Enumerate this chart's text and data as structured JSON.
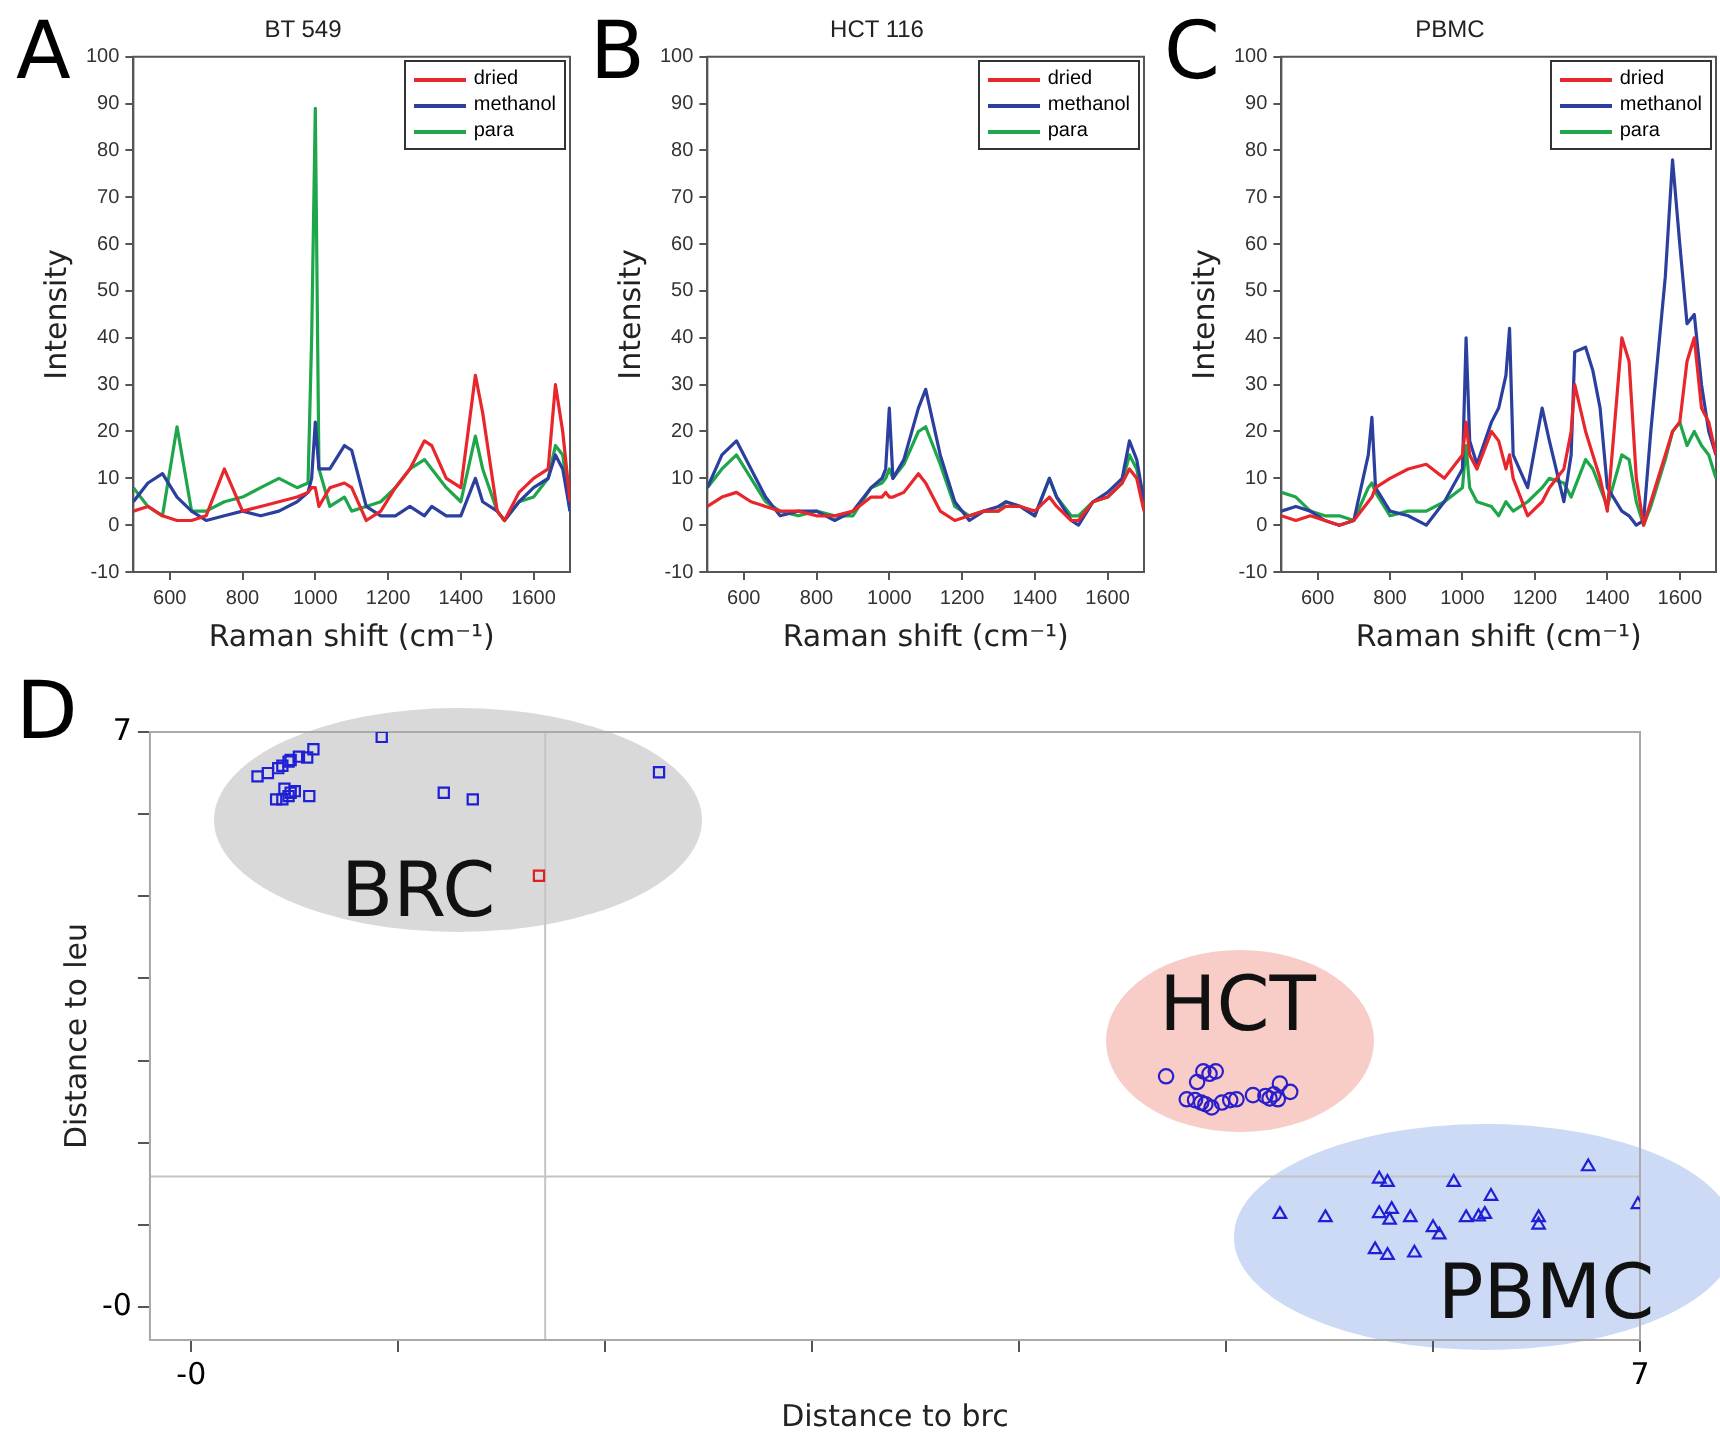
{
  "chart_data": [
    {
      "type": "line",
      "title": "BT 549",
      "xlabel": "Raman shift (cm⁻¹)",
      "ylabel": "Intensity",
      "annotations": [
        "A"
      ],
      "legend": "top right",
      "xlim": [
        500,
        1700
      ],
      "xticks": [
        600,
        800,
        1000,
        1200,
        1400,
        1600
      ],
      "ylim": [
        -10,
        100
      ],
      "yticks": [
        -10,
        0,
        10,
        20,
        30,
        40,
        50,
        60,
        70,
        80,
        90,
        100
      ],
      "x": [
        500,
        540,
        580,
        620,
        660,
        700,
        750,
        800,
        850,
        900,
        950,
        980,
        990,
        1000,
        1010,
        1040,
        1080,
        1100,
        1140,
        1180,
        1220,
        1260,
        1300,
        1320,
        1360,
        1400,
        1440,
        1460,
        1500,
        1520,
        1560,
        1600,
        1640,
        1660,
        1680,
        1700
      ],
      "series": [
        {
          "name": "dried",
          "color": "#e8262b",
          "values": [
            3,
            4,
            2,
            1,
            1,
            2,
            12,
            3,
            4,
            5,
            6,
            7,
            8,
            8,
            4,
            8,
            9,
            8,
            1,
            3,
            8,
            12,
            18,
            17,
            10,
            8,
            32,
            24,
            3,
            1,
            7,
            10,
            12,
            30,
            20,
            5
          ]
        },
        {
          "name": "methanol",
          "color": "#2b3f9e",
          "values": [
            5,
            9,
            11,
            6,
            3,
            1,
            2,
            3,
            2,
            3,
            5,
            7,
            10,
            22,
            12,
            12,
            17,
            16,
            4,
            2,
            2,
            4,
            2,
            4,
            2,
            2,
            10,
            5,
            3,
            1,
            5,
            8,
            10,
            15,
            12,
            3
          ]
        },
        {
          "name": "para",
          "color": "#1ea64a",
          "values": [
            8,
            4,
            2,
            21,
            3,
            3,
            5,
            6,
            8,
            10,
            8,
            9,
            40,
            89,
            12,
            4,
            6,
            3,
            4,
            5,
            8,
            12,
            14,
            12,
            8,
            5,
            19,
            12,
            3,
            1,
            5,
            6,
            10,
            17,
            15,
            3
          ]
        }
      ]
    },
    {
      "type": "line",
      "title": "HCT 116",
      "xlabel": "Raman shift (cm⁻¹)",
      "ylabel": "Intensity",
      "annotations": [
        "B"
      ],
      "legend": "top right",
      "xlim": [
        500,
        1700
      ],
      "xticks": [
        600,
        800,
        1000,
        1200,
        1400,
        1600
      ],
      "ylim": [
        -10,
        100
      ],
      "yticks": [
        -10,
        0,
        10,
        20,
        30,
        40,
        50,
        60,
        70,
        80,
        90,
        100
      ],
      "x": [
        500,
        540,
        580,
        620,
        660,
        700,
        750,
        800,
        850,
        900,
        950,
        980,
        990,
        1000,
        1010,
        1040,
        1080,
        1100,
        1140,
        1180,
        1220,
        1260,
        1300,
        1320,
        1360,
        1400,
        1440,
        1460,
        1500,
        1520,
        1560,
        1600,
        1640,
        1660,
        1680,
        1700
      ],
      "series": [
        {
          "name": "dried",
          "color": "#e8262b",
          "values": [
            4,
            6,
            7,
            5,
            4,
            3,
            3,
            2,
            2,
            3,
            6,
            6,
            7,
            6,
            6,
            7,
            11,
            9,
            3,
            1,
            2,
            3,
            3,
            4,
            4,
            3,
            6,
            4,
            1,
            1,
            5,
            6,
            9,
            12,
            10,
            3
          ]
        },
        {
          "name": "methanol",
          "color": "#2b3f9e",
          "values": [
            8,
            15,
            18,
            12,
            6,
            2,
            3,
            3,
            1,
            3,
            8,
            10,
            12,
            25,
            10,
            14,
            25,
            29,
            15,
            5,
            1,
            3,
            4,
            5,
            4,
            2,
            10,
            6,
            1,
            0,
            5,
            7,
            10,
            18,
            14,
            5
          ]
        },
        {
          "name": "para",
          "color": "#1ea64a",
          "values": [
            8,
            12,
            15,
            10,
            5,
            3,
            2,
            3,
            2,
            2,
            8,
            9,
            10,
            12,
            10,
            13,
            20,
            21,
            13,
            4,
            2,
            3,
            3,
            5,
            4,
            2,
            10,
            6,
            2,
            2,
            5,
            6,
            9,
            15,
            12,
            4
          ]
        }
      ]
    },
    {
      "type": "line",
      "title": "PBMC",
      "xlabel": "Raman shift (cm⁻¹)",
      "ylabel": "Intensity",
      "annotations": [
        "C"
      ],
      "legend": "top right",
      "xlim": [
        500,
        1700
      ],
      "xticks": [
        600,
        800,
        1000,
        1200,
        1400,
        1600
      ],
      "ylim": [
        -10,
        100
      ],
      "yticks": [
        -10,
        0,
        10,
        20,
        30,
        40,
        50,
        60,
        70,
        80,
        90,
        100
      ],
      "x": [
        500,
        540,
        580,
        620,
        660,
        700,
        740,
        750,
        760,
        800,
        850,
        900,
        950,
        1000,
        1010,
        1020,
        1040,
        1080,
        1100,
        1120,
        1130,
        1140,
        1180,
        1220,
        1240,
        1280,
        1300,
        1310,
        1340,
        1360,
        1380,
        1400,
        1440,
        1460,
        1480,
        1500,
        1520,
        1560,
        1580,
        1600,
        1620,
        1640,
        1660,
        1680,
        1700
      ],
      "series": [
        {
          "name": "dried",
          "color": "#e8262b",
          "values": [
            2,
            1,
            2,
            1,
            0,
            1,
            5,
            6,
            8,
            10,
            12,
            13,
            10,
            15,
            22,
            15,
            12,
            20,
            18,
            12,
            15,
            10,
            2,
            5,
            8,
            12,
            20,
            30,
            20,
            15,
            10,
            3,
            40,
            35,
            10,
            0,
            5,
            15,
            20,
            22,
            35,
            40,
            25,
            22,
            15
          ]
        },
        {
          "name": "methanol",
          "color": "#2b3f9e",
          "values": [
            3,
            4,
            3,
            1,
            0,
            1,
            15,
            23,
            8,
            3,
            2,
            0,
            5,
            12,
            40,
            18,
            13,
            22,
            25,
            32,
            42,
            15,
            8,
            25,
            18,
            5,
            15,
            37,
            38,
            33,
            25,
            8,
            3,
            2,
            0,
            1,
            20,
            53,
            78,
            60,
            43,
            45,
            30,
            20,
            15
          ]
        },
        {
          "name": "para",
          "color": "#1ea64a",
          "values": [
            7,
            6,
            3,
            2,
            2,
            1,
            8,
            9,
            7,
            2,
            3,
            3,
            5,
            8,
            17,
            8,
            5,
            4,
            2,
            5,
            4,
            3,
            5,
            8,
            10,
            9,
            6,
            8,
            14,
            12,
            8,
            4,
            15,
            14,
            5,
            0,
            4,
            14,
            20,
            22,
            17,
            20,
            17,
            15,
            10
          ]
        }
      ]
    },
    {
      "type": "scatter",
      "xlabel": "Distance to brc",
      "ylabel": "Distance to leu",
      "annotations": [
        "D",
        "BRC",
        "HCT",
        "PBMC"
      ],
      "xlim": [
        -0.2,
        7
      ],
      "xticks": [
        {
          "value": 0,
          "label": "-0"
        },
        {
          "value": 1,
          "label": null
        },
        {
          "value": 2,
          "label": null
        },
        {
          "value": 3,
          "label": null
        },
        {
          "value": 4,
          "label": null
        },
        {
          "value": 5,
          "label": null
        },
        {
          "value": 6,
          "label": null
        },
        7
      ],
      "ylim": [
        -0.4,
        7
      ],
      "yticks": [
        {
          "value": 0,
          "label": "-0"
        },
        {
          "value": 1,
          "label": null
        },
        {
          "value": 2,
          "label": null
        },
        {
          "value": 3,
          "label": null
        },
        {
          "value": 4,
          "label": null
        },
        {
          "value": 5,
          "label": null
        },
        {
          "value": 6,
          "label": null
        },
        7
      ],
      "ref_lines": [
        {
          "axis": "x",
          "value": 1.71,
          "color": "#c4c4c4"
        },
        {
          "axis": "y",
          "value": 1.59,
          "color": "#c4c4c4"
        }
      ],
      "series": [
        {
          "color": "#1f1fd6",
          "marker": "square",
          "x": [
            0.32,
            0.37,
            0.42,
            0.44,
            0.47,
            0.48,
            0.52,
            0.56,
            0.59,
            0.92,
            0.41,
            0.44,
            0.47,
            0.48,
            0.5,
            0.57,
            1.22,
            1.36,
            2.26,
            0.45
          ],
          "values": [
            6.46,
            6.5,
            6.56,
            6.59,
            6.64,
            6.66,
            6.7,
            6.69,
            6.79,
            6.94,
            6.18,
            6.18,
            6.22,
            6.26,
            6.28,
            6.22,
            6.26,
            6.18,
            6.51,
            6.31
          ]
        },
        {
          "color": "#e02020",
          "marker": "square",
          "x": [
            1.68
          ],
          "values": [
            5.25
          ]
        },
        {
          "color": "#2a1fc9",
          "marker": "circle",
          "x": [
            4.71,
            4.81,
            4.85,
            4.86,
            4.89,
            4.92,
            4.95,
            4.88,
            4.9,
            4.98,
            5.02,
            5.05,
            5.13,
            5.19,
            5.21,
            5.23,
            5.25,
            5.26,
            5.31,
            4.93
          ],
          "values": [
            2.81,
            2.53,
            2.52,
            2.74,
            2.87,
            2.84,
            2.87,
            2.49,
            2.47,
            2.49,
            2.52,
            2.53,
            2.58,
            2.57,
            2.54,
            2.59,
            2.53,
            2.72,
            2.62,
            2.43
          ]
        },
        {
          "color": "#1f1fd6",
          "marker": "triangle",
          "x": [
            5.26,
            5.48,
            5.74,
            5.78,
            5.74,
            5.8,
            5.79,
            5.89,
            6.0,
            6.03,
            6.1,
            6.16,
            6.22,
            6.25,
            6.28,
            6.51,
            6.51,
            6.75,
            6.99,
            5.72,
            5.78,
            5.91
          ],
          "values": [
            1.13,
            1.09,
            1.56,
            1.52,
            1.14,
            1.19,
            1.06,
            1.09,
            0.97,
            0.88,
            1.52,
            1.09,
            1.1,
            1.13,
            1.35,
            1.09,
            1.0,
            1.71,
            1.25,
            0.7,
            0.63,
            0.66
          ]
        }
      ]
    }
  ]
}
